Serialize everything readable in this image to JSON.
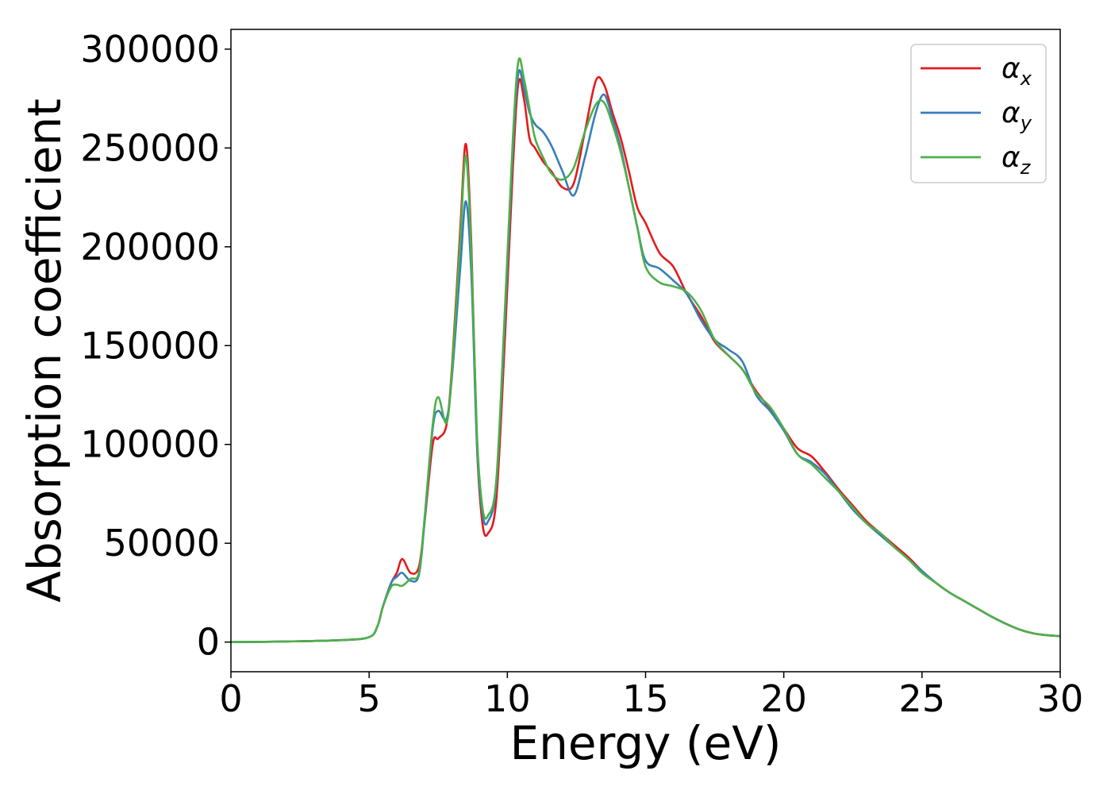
{
  "chart_data": {
    "type": "line",
    "xlabel": "Energy (eV)",
    "ylabel": "Absorption coefficient",
    "xlim": [
      0,
      30
    ],
    "ylim": [
      -15000,
      310000
    ],
    "xticks": [
      0,
      5,
      10,
      15,
      20,
      25,
      30
    ],
    "yticks": [
      0,
      50000,
      100000,
      150000,
      200000,
      250000,
      300000
    ],
    "xtick_labels": [
      "0",
      "5",
      "10",
      "15",
      "20",
      "25",
      "30"
    ],
    "ytick_labels": [
      "0",
      "50000",
      "100000",
      "150000",
      "200000",
      "250000",
      "300000"
    ],
    "grid": false,
    "legend_position": "top-right",
    "x": [
      0,
      2,
      4,
      5,
      5.3,
      5.5,
      5.8,
      6.0,
      6.2,
      6.5,
      6.8,
      7.0,
      7.3,
      7.5,
      7.8,
      8.0,
      8.3,
      8.5,
      8.7,
      8.9,
      9.1,
      9.3,
      9.6,
      9.9,
      10.2,
      10.4,
      10.6,
      10.8,
      11.0,
      11.3,
      11.6,
      12.0,
      12.4,
      12.8,
      13.2,
      13.5,
      13.8,
      14.1,
      14.4,
      14.7,
      15.0,
      15.5,
      16.0,
      16.5,
      17.0,
      17.5,
      18.0,
      18.5,
      19.0,
      19.5,
      20.0,
      20.5,
      21.0,
      21.5,
      22.0,
      22.5,
      23.0,
      23.5,
      24.0,
      24.5,
      25.0,
      25.5,
      26.0,
      26.5,
      27.0,
      27.5,
      28.0,
      28.5,
      29.0,
      29.5,
      30.0
    ],
    "series": [
      {
        "name": "α_x",
        "label_base": "α",
        "label_sub": "x",
        "color": "#e41a1c",
        "values": [
          0,
          300,
          1000,
          2500,
          8000,
          18000,
          30000,
          35000,
          42000,
          35000,
          38000,
          60000,
          100000,
          103000,
          110000,
          140000,
          210000,
          252000,
          200000,
          100000,
          60000,
          55000,
          72000,
          150000,
          240000,
          283000,
          275000,
          255000,
          250000,
          243000,
          238000,
          230000,
          232000,
          258000,
          284000,
          282000,
          268000,
          255000,
          238000,
          220000,
          212000,
          197000,
          190000,
          176000,
          165000,
          152000,
          145000,
          138000,
          127000,
          118000,
          108000,
          98000,
          94000,
          86000,
          77000,
          69000,
          61000,
          55000,
          49000,
          43000,
          36000,
          30000,
          25000,
          21000,
          17000,
          13000,
          9500,
          6500,
          4500,
          3500,
          3000
        ]
      },
      {
        "name": "α_y",
        "label_base": "α",
        "label_sub": "y",
        "color": "#377eb8",
        "values": [
          0,
          300,
          1000,
          2500,
          8000,
          18000,
          30000,
          33000,
          35000,
          31000,
          34000,
          60000,
          108000,
          117000,
          113000,
          135000,
          190000,
          223000,
          185000,
          100000,
          65000,
          61000,
          80000,
          160000,
          250000,
          288000,
          280000,
          268000,
          262000,
          258000,
          251000,
          238000,
          226000,
          245000,
          268000,
          277000,
          265000,
          250000,
          230000,
          210000,
          193000,
          189000,
          183000,
          176000,
          163000,
          153000,
          148000,
          142000,
          125000,
          117000,
          107000,
          95000,
          91000,
          85000,
          76000,
          67000,
          60000,
          54000,
          48000,
          42000,
          36000,
          30000,
          25000,
          21000,
          17000,
          13000,
          9500,
          6500,
          4500,
          3500,
          3000
        ]
      },
      {
        "name": "α_z",
        "label_base": "α",
        "label_sub": "z",
        "color": "#4daf4a",
        "values": [
          0,
          300,
          1000,
          2500,
          8000,
          18000,
          28000,
          29000,
          28500,
          32000,
          35000,
          62000,
          110000,
          124000,
          111000,
          138000,
          205000,
          246000,
          195000,
          105000,
          68000,
          64000,
          82000,
          165000,
          255000,
          294000,
          285000,
          270000,
          255000,
          245000,
          237000,
          234000,
          240000,
          258000,
          272000,
          273000,
          262000,
          248000,
          230000,
          210000,
          190000,
          182000,
          180000,
          177000,
          168000,
          153000,
          145000,
          138000,
          126000,
          119000,
          108000,
          95000,
          90000,
          83000,
          76000,
          68000,
          60000,
          55000,
          48000,
          42000,
          35000,
          30000,
          25000,
          21000,
          17000,
          13000,
          9500,
          6500,
          4500,
          3500,
          3000
        ]
      }
    ]
  }
}
